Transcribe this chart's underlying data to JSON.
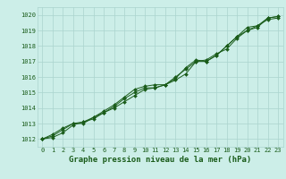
{
  "title": "Graphe pression niveau de la mer (hPa)",
  "bg_color": "#cceee8",
  "grid_color": "#aad4ce",
  "line_color": "#1a5c1a",
  "marker_color": "#1a5c1a",
  "xlim": [
    -0.5,
    23.5
  ],
  "ylim": [
    1011.5,
    1020.5
  ],
  "yticks": [
    1012,
    1013,
    1014,
    1015,
    1016,
    1017,
    1018,
    1019,
    1020
  ],
  "xticks": [
    0,
    1,
    2,
    3,
    4,
    5,
    6,
    7,
    8,
    9,
    10,
    11,
    12,
    13,
    14,
    15,
    16,
    17,
    18,
    19,
    20,
    21,
    22,
    23
  ],
  "series": [
    [
      1012.0,
      1012.2,
      1012.6,
      1013.0,
      1013.1,
      1013.4,
      1013.7,
      1014.0,
      1014.4,
      1014.8,
      1015.2,
      1015.3,
      1015.5,
      1015.8,
      1016.2,
      1017.0,
      1017.1,
      1017.5,
      1017.8,
      1018.5,
      1019.0,
      1019.2,
      1019.8,
      1019.9
    ],
    [
      1012.0,
      1012.3,
      1012.7,
      1013.0,
      1013.0,
      1013.4,
      1013.8,
      1014.2,
      1014.7,
      1015.2,
      1015.4,
      1015.5,
      1015.5,
      1016.0,
      1016.5,
      1017.0,
      1017.0,
      1017.4,
      1018.0,
      1018.6,
      1019.2,
      1019.3,
      1019.7,
      1019.8
    ],
    [
      1012.0,
      1012.1,
      1012.4,
      1012.9,
      1013.1,
      1013.3,
      1013.7,
      1014.1,
      1014.6,
      1015.0,
      1015.3,
      1015.3,
      1015.5,
      1015.9,
      1016.6,
      1017.1,
      1017.0,
      1017.4,
      1018.0,
      1018.6,
      1019.0,
      1019.3,
      1019.8,
      1019.9
    ]
  ],
  "tick_fontsize": 5,
  "label_fontsize": 6.5
}
